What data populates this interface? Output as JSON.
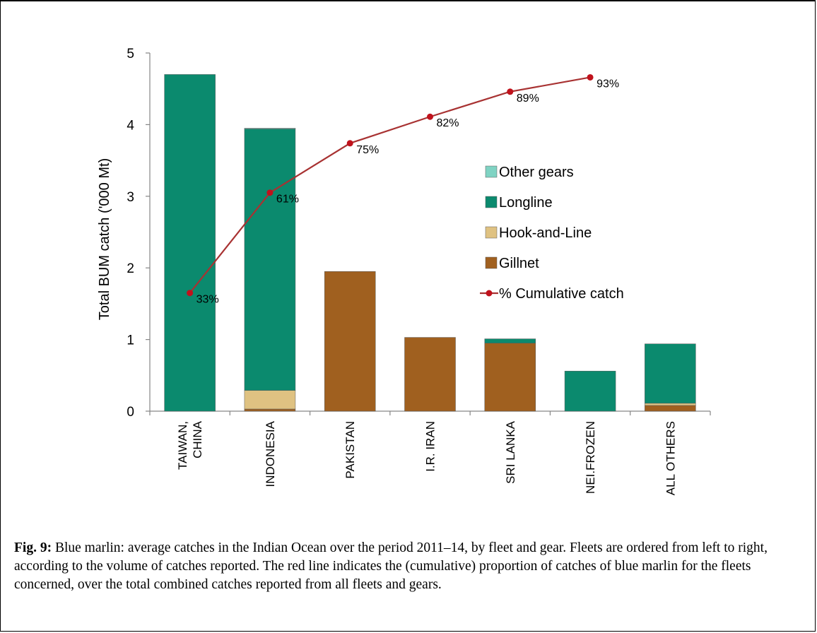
{
  "chart_data": {
    "type": "bar",
    "stacked": true,
    "ylabel": "Total BUM catch ('000 Mt)",
    "ylim": [
      0,
      5
    ],
    "yticks": [
      0,
      1,
      2,
      3,
      4,
      5
    ],
    "categories": [
      "TAIWAN, CHINA",
      "INDONESIA",
      "PAKISTAN",
      "I.R. IRAN",
      "SRI LANKA",
      "NEI.FROZEN",
      "ALL OTHERS"
    ],
    "category_lines": [
      [
        "TAIWAN,",
        "CHINA"
      ],
      [
        "INDONESIA"
      ],
      [
        "PAKISTAN"
      ],
      [
        "I.R. IRAN"
      ],
      [
        "SRI LANKA"
      ],
      [
        "NEI.FROZEN"
      ],
      [
        "ALL OTHERS"
      ]
    ],
    "series": [
      {
        "name": "Gillnet",
        "color": "#a0601f",
        "values": [
          0,
          0.03,
          1.95,
          1.03,
          0.95,
          0,
          0.08
        ]
      },
      {
        "name": "Hook-and-Line",
        "color": "#dfc282",
        "values": [
          0,
          0.26,
          0,
          0,
          0,
          0,
          0.03
        ]
      },
      {
        "name": "Longline",
        "color": "#0b8a6e",
        "values": [
          4.7,
          3.65,
          0,
          0,
          0.06,
          0.56,
          0.83
        ]
      },
      {
        "name": "Other gears",
        "color": "#7fd3c3",
        "values": [
          0,
          0.01,
          0,
          0,
          0,
          0,
          0
        ]
      }
    ],
    "line": {
      "name": "% Cumulative catch",
      "color": "#a83232",
      "marker_color": "#c0121c",
      "values": [
        33,
        61,
        75,
        82,
        89,
        93
      ],
      "labels": [
        "33%",
        "61%",
        "75%",
        "82%",
        "89%",
        "93%"
      ],
      "y_values": [
        1.65,
        3.05,
        3.74,
        4.11,
        4.46,
        4.66
      ]
    },
    "legend": {
      "position": "center-right",
      "order": [
        "Other gears",
        "Longline",
        "Hook-and-Line",
        "Gillnet",
        "% Cumulative catch"
      ]
    },
    "grid": false
  },
  "caption": {
    "label": "Fig. 9:",
    "text": "Blue marlin: average catches in the Indian Ocean over the period 2011–14, by fleet and gear. Fleets are ordered from left to right, according to the volume of catches reported. The red line indicates the (cumulative) proportion of catches of blue marlin for the fleets concerned, over the total combined catches reported from all fleets and gears."
  }
}
